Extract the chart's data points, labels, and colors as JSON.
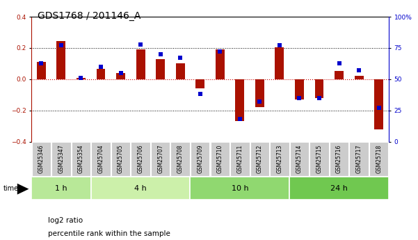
{
  "title": "GDS1768 / 201146_A",
  "samples": [
    "GSM25346",
    "GSM25347",
    "GSM25354",
    "GSM25704",
    "GSM25705",
    "GSM25706",
    "GSM25707",
    "GSM25708",
    "GSM25709",
    "GSM25710",
    "GSM25711",
    "GSM25712",
    "GSM25713",
    "GSM25714",
    "GSM25715",
    "GSM25716",
    "GSM25717",
    "GSM25718"
  ],
  "log2_ratio": [
    0.11,
    0.245,
    0.01,
    0.065,
    0.04,
    0.19,
    0.13,
    0.1,
    -0.06,
    0.19,
    -0.27,
    -0.18,
    0.205,
    -0.13,
    -0.12,
    0.055,
    0.02,
    -0.32
  ],
  "percentile": [
    0.63,
    0.77,
    0.51,
    0.6,
    0.55,
    0.78,
    0.7,
    0.67,
    0.38,
    0.72,
    0.18,
    0.32,
    0.77,
    0.35,
    0.35,
    0.63,
    0.57,
    0.27
  ],
  "time_groups": [
    {
      "label": "1 h",
      "start": 0,
      "end": 3,
      "color": "#b8e898"
    },
    {
      "label": "4 h",
      "start": 3,
      "end": 8,
      "color": "#ccf0aa"
    },
    {
      "label": "10 h",
      "start": 8,
      "end": 13,
      "color": "#90d870"
    },
    {
      "label": "24 h",
      "start": 13,
      "end": 18,
      "color": "#70c850"
    }
  ],
  "ylim": [
    -0.4,
    0.4
  ],
  "yticks_left": [
    -0.4,
    -0.2,
    0.0,
    0.2,
    0.4
  ],
  "yticks_right": [
    0,
    25,
    50,
    75,
    100
  ],
  "bar_color": "#aa1100",
  "dot_color": "#0000cc",
  "background_color": "#ffffff",
  "zero_line_color": "#cc0000",
  "title_fontsize": 10,
  "tick_fontsize": 6.5,
  "sample_fontsize": 5.5,
  "time_fontsize": 8,
  "legend_fontsize": 7.5
}
